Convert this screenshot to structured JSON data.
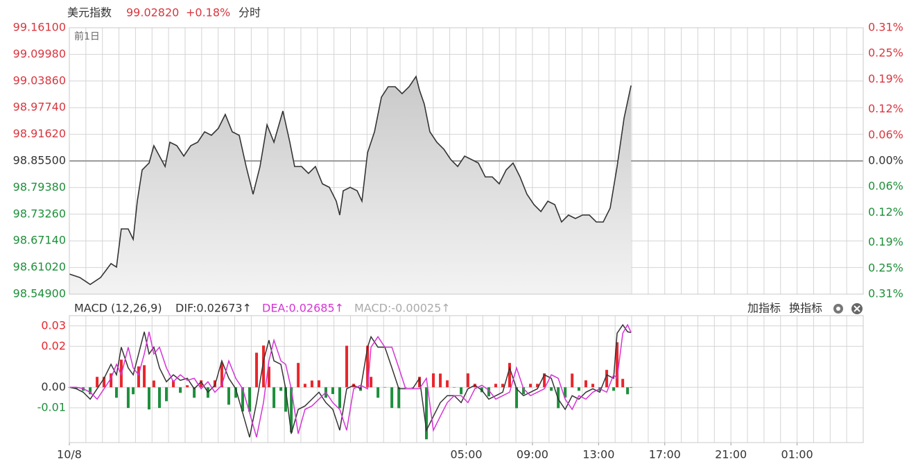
{
  "header": {
    "title": "美元指数",
    "price": "99.02820",
    "change": "+0.18%",
    "mode": "分时"
  },
  "chart_data": [
    {
      "type": "line",
      "annotation": "前1日",
      "x": [
        0,
        0.63,
        1.26,
        1.89,
        2.52,
        2.85,
        3.14,
        3.56,
        3.86,
        4.11,
        4.4,
        4.82,
        5.11,
        5.45,
        5.79,
        6.08,
        6.5,
        6.92,
        7.34,
        7.76,
        8.18,
        8.59,
        9.01,
        9.43,
        9.85,
        10.27,
        10.69,
        11.11,
        11.53,
        11.95,
        12.37,
        12.91,
        13.33,
        13.62,
        14.04,
        14.46,
        14.88,
        15.3,
        15.72,
        16.14,
        16.35,
        16.56,
        16.98,
        17.4,
        17.69,
        18.03,
        18.45,
        18.87,
        19.28,
        19.7,
        20.12,
        20.54,
        20.96,
        21.17,
        21.46,
        21.8,
        22.22,
        22.64,
        23.06,
        23.48,
        23.9,
        24.32,
        24.73,
        25.15,
        25.57,
        25.99,
        26.41,
        26.83,
        27.25,
        27.67,
        28.09,
        28.51,
        28.93,
        29.35,
        29.76,
        30.18,
        30.6,
        31.02,
        31.44,
        31.86,
        32.28,
        32.7,
        33.12,
        33.54,
        33.96
      ],
      "series": [
        {
          "color": "#333333",
          "values": [
            98.5952,
            98.5872,
            98.5713,
            98.5872,
            98.6191,
            98.6111,
            98.6988,
            98.6988,
            98.6749,
            98.7626,
            98.8343,
            98.8502,
            98.8901,
            98.8662,
            98.8422,
            98.898,
            98.8901,
            98.8662,
            98.8901,
            98.898,
            98.9219,
            98.914,
            98.9299,
            98.9618,
            98.9219,
            98.914,
            98.8422,
            98.7785,
            98.8422,
            98.9379,
            98.898,
            98.9697,
            98.898,
            98.8422,
            98.8422,
            98.8263,
            98.8422,
            98.8024,
            98.7944,
            98.7626,
            98.7307,
            98.7865,
            98.7944,
            98.7865,
            98.7626,
            98.8741,
            98.9219,
            99.0016,
            99.0255,
            99.0255,
            99.0096,
            99.0255,
            99.049,
            99.0176,
            98.9857,
            98.9219,
            98.898,
            98.8821,
            98.8582,
            98.8422,
            98.8662,
            98.8582,
            98.8502,
            98.8183,
            98.8183,
            98.8024,
            98.8343,
            98.8502,
            98.8183,
            98.7785,
            98.7546,
            98.7386,
            98.7626,
            98.7546,
            98.7147,
            98.7307,
            98.7227,
            98.7307,
            98.7307,
            98.7147,
            98.7147,
            98.7466,
            98.8422,
            98.9538,
            99.0282
          ]
        }
      ],
      "xlim": [
        0,
        48
      ],
      "xticks": [
        {
          "value": 0,
          "label": "10/8"
        },
        {
          "value": 24,
          "label": "05:00"
        },
        {
          "value": 28,
          "label": "09:00"
        },
        {
          "value": 32,
          "label": "13:00"
        },
        {
          "value": 36,
          "label": "17:00"
        },
        {
          "value": 40,
          "label": "21:00"
        },
        {
          "value": 44,
          "label": "01:00"
        }
      ],
      "ylim": [
        98.549,
        99.161
      ],
      "yticks": [
        {
          "value": 99.161,
          "label": "99.16100"
        },
        {
          "value": 99.0998,
          "label": "99.09980"
        },
        {
          "value": 99.0386,
          "label": "99.03860"
        },
        {
          "value": 98.9774,
          "label": "98.97740"
        },
        {
          "value": 98.9162,
          "label": "98.91620"
        },
        {
          "value": 98.855,
          "label": "98.85500"
        },
        {
          "value": 98.7938,
          "label": "98.79380"
        },
        {
          "value": 98.7326,
          "label": "98.73260"
        },
        {
          "value": 98.6714,
          "label": "98.67140"
        },
        {
          "value": 98.6102,
          "label": "98.61020"
        },
        {
          "value": 98.549,
          "label": "98.54900"
        }
      ],
      "y2lim": [
        -0.31,
        0.31
      ],
      "y2ticks": [
        {
          "value": 0.31,
          "label": "0.31%"
        },
        {
          "value": 0.25,
          "label": "0.25%"
        },
        {
          "value": 0.19,
          "label": "0.19%"
        },
        {
          "value": 0.12,
          "label": "0.12%"
        },
        {
          "value": 0.06,
          "label": "0.06%"
        },
        {
          "value": 0,
          "label": "0.00%"
        },
        {
          "value": -0.06,
          "label": "0.06%"
        },
        {
          "value": -0.12,
          "label": "0.12%"
        },
        {
          "value": -0.19,
          "label": "0.19%"
        },
        {
          "value": -0.25,
          "label": "0.25%"
        },
        {
          "value": -0.31,
          "label": "0.31%"
        }
      ],
      "reference": 98.855,
      "grid": true,
      "up_color": "#d9363e",
      "down_color": "#1f8f3a"
    },
    {
      "type": "macd",
      "title": "MACD (12,26,9)",
      "x": [
        0,
        0.42,
        0.84,
        1.26,
        1.68,
        2.1,
        2.52,
        2.85,
        3.14,
        3.56,
        3.86,
        4.19,
        4.53,
        4.82,
        5.11,
        5.45,
        5.87,
        6.29,
        6.71,
        7.13,
        7.55,
        7.97,
        8.38,
        8.8,
        9.22,
        9.64,
        10.06,
        10.48,
        10.9,
        11.32,
        11.74,
        12.07,
        12.37,
        12.79,
        13.08,
        13.42,
        13.84,
        14.25,
        14.67,
        15.09,
        15.51,
        15.93,
        16.35,
        16.77,
        17.19,
        17.61,
        18.03,
        18.24,
        18.66,
        19.08,
        19.5,
        19.92,
        20.33,
        20.75,
        21.17,
        21.59,
        22.01,
        22.43,
        22.85,
        23.27,
        23.69,
        24.1,
        24.52,
        24.94,
        25.36,
        25.78,
        26.2,
        26.62,
        27.04,
        27.46,
        27.88,
        28.3,
        28.72,
        29.14,
        29.56,
        29.98,
        30.4,
        30.81,
        31.23,
        31.65,
        32.07,
        32.49,
        32.91,
        33.12,
        33.46,
        33.75,
        33.96
      ],
      "series": [
        {
          "name": "DIF:0.02673↑",
          "color": "#333333",
          "kind": "line",
          "values": [
            0,
            -0.0007,
            -0.0024,
            -0.0058,
            -0.0007,
            0.0044,
            0.0112,
            0.0061,
            0.0196,
            0.0095,
            0.0061,
            0.0163,
            0.0271,
            0.0163,
            0.0196,
            0.0095,
            0.0027,
            0.0061,
            0.0034,
            0.0044,
            -0.0007,
            0.0027,
            -0.0024,
            0.001,
            0.0129,
            0.0044,
            -0.0007,
            -0.0125,
            -0.0244,
            -0.0075,
            0.0129,
            0.023,
            0.0129,
            0.0112,
            -0.0007,
            -0.0227,
            -0.0108,
            -0.0091,
            -0.0058,
            -0.0024,
            -0.0075,
            -0.0108,
            -0.021,
            -0.0007,
            0.001,
            -0.0007,
            0.0196,
            0.0247,
            0.0196,
            0.0196,
            0.0095,
            -0.0007,
            -0.0007,
            -0.0007,
            0.0044,
            -0.021,
            -0.0142,
            -0.0075,
            -0.0041,
            -0.0041,
            -0.0075,
            -0.0007,
            0.001,
            -0.0014,
            -0.0058,
            -0.0041,
            -0.0024,
            0.0095,
            -0.0007,
            -0.0041,
            -0.0024,
            -0.0007,
            0.0061,
            0.0044,
            -0.0058,
            -0.0108,
            -0.0041,
            -0.0058,
            -0.0024,
            -0.0007,
            -0.0024,
            0.0061,
            0.0044,
            0.0264,
            0.0305,
            0.0271,
            0.02673
          ]
        },
        {
          "name": "DEA:0.02685↑",
          "color": "#d633d6",
          "kind": "line",
          "values": [
            0,
            0,
            -0.0007,
            -0.0024,
            -0.0058,
            -0.0007,
            0.0044,
            0.0112,
            0.0061,
            0.0196,
            0.0095,
            0.0061,
            0.0163,
            0.0271,
            0.0163,
            0.0196,
            0.0095,
            0.0027,
            0.0061,
            0.0034,
            0.0044,
            -0.0007,
            0.0027,
            -0.0024,
            0.001,
            0.0129,
            0.0044,
            -0.0007,
            -0.0125,
            -0.0244,
            -0.0075,
            0.0129,
            0.023,
            0.0129,
            0.0112,
            -0.0007,
            -0.0227,
            -0.0108,
            -0.0091,
            -0.0058,
            -0.0024,
            -0.0075,
            -0.0108,
            -0.021,
            -0.0007,
            0.001,
            -0.0007,
            0.0196,
            0.0247,
            0.0196,
            0.0196,
            0.0095,
            -0.0007,
            -0.0007,
            -0.0007,
            0.0044,
            -0.021,
            -0.0142,
            -0.0075,
            -0.0041,
            -0.0041,
            -0.0075,
            -0.0007,
            0.001,
            -0.0014,
            -0.0058,
            -0.0041,
            -0.0024,
            0.0095,
            -0.0007,
            -0.0041,
            -0.0024,
            -0.0007,
            0.0061,
            0.0044,
            -0.0058,
            -0.0108,
            -0.0041,
            -0.0058,
            -0.0024,
            -0.0007,
            -0.0024,
            0.0061,
            0.0044,
            0.0264,
            0.0305,
            0.02685
          ]
        },
        {
          "name": "MACD:-0.00025↑",
          "color": "#aaaaaa",
          "kind": "bar",
          "values": [
            0,
            -0.0007,
            -0.0017,
            -0.0034,
            0.0051,
            0.0051,
            0.0068,
            -0.0051,
            0.0135,
            -0.0101,
            -0.0034,
            0.0102,
            0.0108,
            -0.0108,
            0.0033,
            -0.0101,
            -0.0068,
            0.0034,
            -0.0027,
            0.001,
            -0.0051,
            0.0034,
            -0.0051,
            0.0034,
            0.0119,
            -0.0085,
            -0.0051,
            -0.0118,
            -0.0119,
            0.0169,
            0.0204,
            0.0101,
            -0.0101,
            -0.0017,
            -0.0119,
            -0.022,
            0.0119,
            0.0017,
            0.0033,
            0.0034,
            -0.0051,
            -0.0033,
            -0.0102,
            0.0203,
            0.0017,
            -0.0017,
            0.0203,
            0.0051,
            -0.0051,
            0,
            -0.0101,
            -0.0102,
            0,
            0,
            0.0051,
            -0.0254,
            0.0068,
            0.0067,
            0.0034,
            0,
            -0.0034,
            0.0068,
            0.0017,
            -0.0024,
            -0.0044,
            0.0017,
            0.0017,
            0.0119,
            -0.0102,
            -0.0034,
            0.0017,
            0.0017,
            0.0068,
            -0.0017,
            -0.0102,
            -0.005,
            0.0067,
            -0.0017,
            0.0034,
            0.0017,
            -0.0017,
            0.0085,
            -0.0017,
            0.022,
            0.0041,
            -0.0034,
            -0.00025
          ]
        }
      ],
      "xlim": [
        0,
        48
      ],
      "ylim": [
        -0.027,
        0.035
      ],
      "yticks": [
        0.03,
        0.02,
        {
          "value": 0,
          "label": "0.00"
        },
        -0.01
      ],
      "grid": true,
      "up_color": "#e8262c",
      "down_color": "#1e8f3c",
      "buttons": [
        "加指标",
        "换指标"
      ]
    }
  ]
}
